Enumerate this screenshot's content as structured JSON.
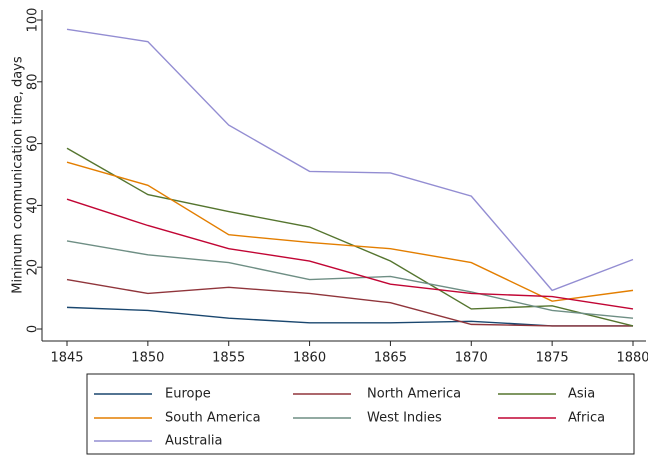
{
  "chart_data": {
    "type": "line",
    "ylabel": "Minimum communication time, days",
    "x": [
      1845,
      1850,
      1855,
      1860,
      1865,
      1870,
      1875,
      1880
    ],
    "xlim": [
      1845,
      1880
    ],
    "xticks": [
      1845,
      1850,
      1855,
      1860,
      1865,
      1870,
      1875,
      1880
    ],
    "ylim": [
      0,
      100
    ],
    "yticks": [
      0,
      20,
      40,
      60,
      80,
      100
    ],
    "legend": "bottom",
    "series": [
      {
        "name": "Europe",
        "color": "#1a476f",
        "values": [
          7,
          6,
          3.5,
          2,
          2,
          2.5,
          1,
          1
        ]
      },
      {
        "name": "North America",
        "color": "#90353b",
        "values": [
          16,
          11.5,
          13.5,
          11.5,
          8.5,
          1.5,
          1,
          1
        ]
      },
      {
        "name": "Asia",
        "color": "#55752f",
        "values": [
          58.5,
          43.5,
          38,
          33,
          22,
          6.5,
          7.5,
          1
        ]
      },
      {
        "name": "South America",
        "color": "#e37e00",
        "values": [
          54,
          46.5,
          30.5,
          28,
          26,
          21.5,
          9,
          12.5
        ]
      },
      {
        "name": "West Indies",
        "color": "#6e8e84",
        "values": [
          28.5,
          24,
          21.5,
          16,
          17,
          12,
          6,
          3.5
        ]
      },
      {
        "name": "Africa",
        "color": "#c10534",
        "values": [
          42,
          33.5,
          26,
          22,
          14.5,
          11.5,
          10.5,
          6.5
        ]
      },
      {
        "name": "Australia",
        "color": "#938dd2",
        "values": [
          97,
          93,
          66,
          51,
          50.5,
          43,
          12.5,
          22.5
        ]
      }
    ]
  }
}
